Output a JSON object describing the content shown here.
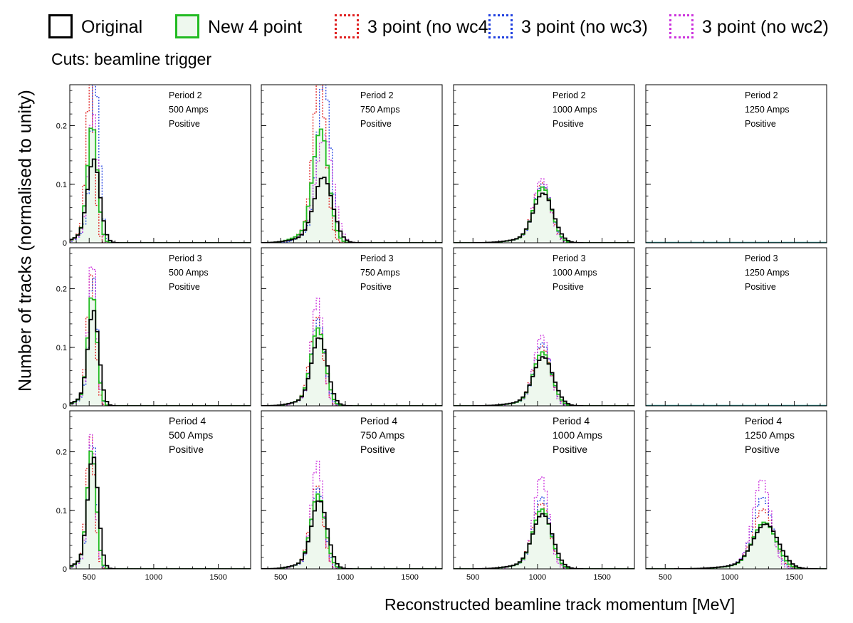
{
  "legend": [
    {
      "label": "Original",
      "color": "#000000",
      "fill": "#ffffff",
      "style": "solid"
    },
    {
      "label": "New 4 point",
      "color": "#22bb22",
      "fill": "#eef8ee",
      "style": "solid"
    },
    {
      "label": "3 point (no wc4)",
      "color": "#e02020",
      "fill": "#ffffff",
      "style": "dotted"
    },
    {
      "label": "3 point (no wc3)",
      "color": "#2040e0",
      "fill": "#ffffff",
      "style": "dotted"
    },
    {
      "label": "3 point (no wc2)",
      "color": "#cc33dd",
      "fill": "#ffffff",
      "style": "dotted"
    }
  ],
  "cuts_label": "Cuts: beamline trigger",
  "ylabel": "Number of tracks (normalised to unity)",
  "xlabel": "Reconstructed beamline track momentum [MeV]",
  "chart_data": {
    "type": "line",
    "xlim": [
      350,
      1750
    ],
    "ylim": [
      0,
      0.27
    ],
    "xticks": [
      500,
      1000,
      1500
    ],
    "yticks": [
      0,
      0.1,
      0.2
    ],
    "ytick_labels": [
      "0",
      "0.1",
      "0.2"
    ],
    "bin_width": 25,
    "series_names": [
      "Original",
      "New 4 point",
      "3 point (no wc4)",
      "3 point (no wc3)",
      "3 point (no wc2)"
    ],
    "panels": [
      {
        "period": "Period 2",
        "current": "500 Amps",
        "polarity": "Positive",
        "mean": 525,
        "sigma": 38,
        "peak": 0.18,
        "empty": false,
        "series": [
          {
            "peak": 0.14,
            "shift": 10,
            "width": 1.25
          },
          {
            "peak": 0.2,
            "shift": 0,
            "width": 1.0
          },
          {
            "peak": 0.28,
            "shift": -15,
            "width": 0.8
          },
          {
            "peak": 0.28,
            "shift": 20,
            "width": 0.9
          },
          {
            "peak": 0.22,
            "shift": 5,
            "width": 0.9
          }
        ]
      },
      {
        "period": "Period 2",
        "current": "750 Amps",
        "polarity": "Positive",
        "mean": 810,
        "sigma": 55,
        "peak": 0.18,
        "empty": false,
        "series": [
          {
            "peak": 0.11,
            "shift": 20,
            "width": 1.3
          },
          {
            "peak": 0.19,
            "shift": 0,
            "width": 1.1
          },
          {
            "peak": 0.28,
            "shift": -10,
            "width": 0.9
          },
          {
            "peak": 0.28,
            "shift": 25,
            "width": 0.9
          },
          {
            "peak": 0.18,
            "shift": 30,
            "width": 1.2
          }
        ]
      },
      {
        "period": "Period 2",
        "current": "1000 Amps",
        "polarity": "Positive",
        "mean": 1040,
        "sigma": 70,
        "peak": 0.09,
        "empty": false,
        "series": [
          {
            "peak": 0.083,
            "shift": 5,
            "width": 1.1
          },
          {
            "peak": 0.093,
            "shift": 0,
            "width": 1.0
          },
          {
            "peak": 0.1,
            "shift": -5,
            "width": 0.95
          },
          {
            "peak": 0.098,
            "shift": 0,
            "width": 0.95
          },
          {
            "peak": 0.107,
            "shift": -5,
            "width": 0.9
          }
        ]
      },
      {
        "period": "Period 2",
        "current": "1250 Amps",
        "polarity": "Positive",
        "mean": 1250,
        "sigma": 80,
        "peak": 0,
        "empty": true,
        "series": []
      },
      {
        "period": "Period 3",
        "current": "500 Amps",
        "polarity": "Positive",
        "mean": 525,
        "sigma": 35,
        "peak": 0.18,
        "empty": false,
        "series": [
          {
            "peak": 0.16,
            "shift": 8,
            "width": 1.2
          },
          {
            "peak": 0.19,
            "shift": 0,
            "width": 1.0
          },
          {
            "peak": 0.22,
            "shift": -8,
            "width": 0.9
          },
          {
            "peak": 0.22,
            "shift": 5,
            "width": 0.9
          },
          {
            "peak": 0.25,
            "shift": 0,
            "width": 0.85
          }
        ]
      },
      {
        "period": "Period 3",
        "current": "750 Amps",
        "polarity": "Positive",
        "mean": 790,
        "sigma": 55,
        "peak": 0.12,
        "empty": false,
        "series": [
          {
            "peak": 0.115,
            "shift": 10,
            "width": 1.1
          },
          {
            "peak": 0.13,
            "shift": 0,
            "width": 1.0
          },
          {
            "peak": 0.15,
            "shift": -10,
            "width": 0.9
          },
          {
            "peak": 0.145,
            "shift": 0,
            "width": 0.9
          },
          {
            "peak": 0.18,
            "shift": -5,
            "width": 0.8
          }
        ]
      },
      {
        "period": "Period 3",
        "current": "1000 Amps",
        "polarity": "Positive",
        "mean": 1040,
        "sigma": 70,
        "peak": 0.09,
        "empty": false,
        "series": [
          {
            "peak": 0.082,
            "shift": 5,
            "width": 1.1
          },
          {
            "peak": 0.09,
            "shift": 0,
            "width": 1.0
          },
          {
            "peak": 0.1,
            "shift": -5,
            "width": 0.95
          },
          {
            "peak": 0.105,
            "shift": 0,
            "width": 0.9
          },
          {
            "peak": 0.118,
            "shift": -5,
            "width": 0.85
          }
        ]
      },
      {
        "period": "Period 3",
        "current": "1250 Amps",
        "polarity": "Positive",
        "mean": 1250,
        "sigma": 80,
        "peak": 0,
        "empty": true,
        "series": []
      },
      {
        "period": "Period 4",
        "current": "500 Amps",
        "polarity": "Positive",
        "mean": 520,
        "sigma": 35,
        "peak": 0.2,
        "empty": false,
        "series": [
          {
            "peak": 0.19,
            "shift": 10,
            "width": 1.15
          },
          {
            "peak": 0.2,
            "shift": 0,
            "width": 1.0
          },
          {
            "peak": 0.22,
            "shift": -8,
            "width": 0.9
          },
          {
            "peak": 0.22,
            "shift": 5,
            "width": 0.9
          },
          {
            "peak": 0.23,
            "shift": 0,
            "width": 0.85
          }
        ]
      },
      {
        "period": "Period 4",
        "current": "750 Amps",
        "polarity": "Positive",
        "mean": 790,
        "sigma": 55,
        "peak": 0.12,
        "empty": false,
        "series": [
          {
            "peak": 0.115,
            "shift": 10,
            "width": 1.1
          },
          {
            "peak": 0.125,
            "shift": 0,
            "width": 1.0
          },
          {
            "peak": 0.14,
            "shift": -10,
            "width": 0.9
          },
          {
            "peak": 0.135,
            "shift": 0,
            "width": 0.9
          },
          {
            "peak": 0.18,
            "shift": -5,
            "width": 0.8
          }
        ]
      },
      {
        "period": "Period 4",
        "current": "1000 Amps",
        "polarity": "Positive",
        "mean": 1035,
        "sigma": 70,
        "peak": 0.1,
        "empty": false,
        "series": [
          {
            "peak": 0.092,
            "shift": 5,
            "width": 1.1
          },
          {
            "peak": 0.1,
            "shift": 0,
            "width": 1.0
          },
          {
            "peak": 0.11,
            "shift": -5,
            "width": 0.95
          },
          {
            "peak": 0.12,
            "shift": 0,
            "width": 0.9
          },
          {
            "peak": 0.155,
            "shift": -5,
            "width": 0.8
          }
        ]
      },
      {
        "period": "Period 4",
        "current": "1250 Amps",
        "polarity": "Positive",
        "mean": 1270,
        "sigma": 90,
        "peak": 0.08,
        "empty": false,
        "series": [
          {
            "peak": 0.075,
            "shift": 10,
            "width": 1.1
          },
          {
            "peak": 0.078,
            "shift": 0,
            "width": 1.0
          },
          {
            "peak": 0.1,
            "shift": -10,
            "width": 0.9
          },
          {
            "peak": 0.12,
            "shift": -15,
            "width": 0.85
          },
          {
            "peak": 0.15,
            "shift": -20,
            "width": 0.75
          }
        ]
      }
    ]
  }
}
